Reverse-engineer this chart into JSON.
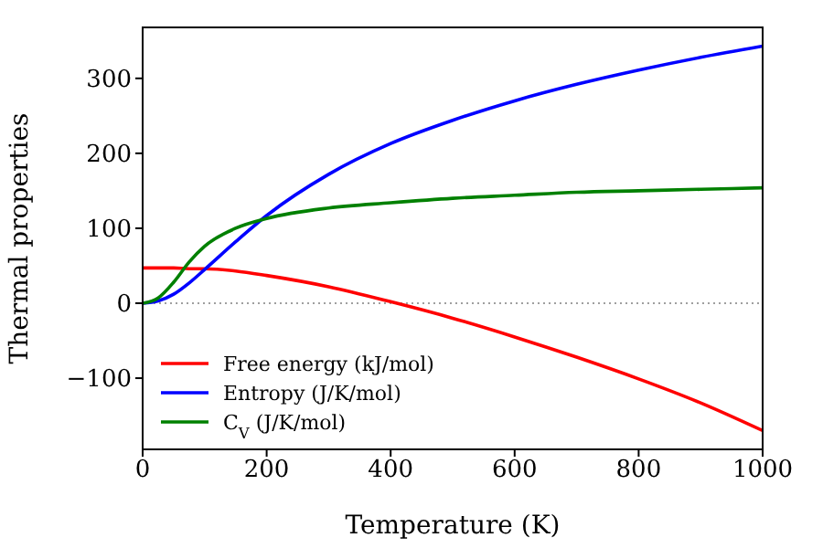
{
  "chart_data": {
    "type": "line",
    "xlabel": "Temperature (K)",
    "ylabel": "Thermal properties",
    "x": [
      0,
      25,
      50,
      75,
      100,
      150,
      200,
      300,
      400,
      500,
      600,
      700,
      800,
      900,
      1000
    ],
    "series": [
      {
        "name": "Free energy (kJ/mol)",
        "color": "#ff0000",
        "values": [
          47,
          47,
          47,
          46,
          46,
          43,
          37,
          22,
          2,
          -20,
          -45,
          -72,
          -101,
          -133,
          -170
        ]
      },
      {
        "name": "Entropy (J/K/mol)",
        "color": "#0000ff",
        "values": [
          0,
          3,
          12,
          27,
          45,
          82,
          117,
          172,
          213,
          244,
          270,
          292,
          311,
          328,
          343
        ]
      },
      {
        "name": "C$_{V}$ (J/K/mol)",
        "color": "#008000",
        "values": [
          0,
          7,
          28,
          55,
          76,
          100,
          113,
          127,
          134,
          140,
          144,
          148,
          150,
          152,
          154
        ]
      }
    ],
    "xlim": [
      0,
      1000
    ],
    "xticks": [
      0,
      200,
      400,
      600,
      800,
      1000
    ],
    "ylim": [
      -195,
      368
    ],
    "yticks": [
      {
        "value": -100,
        "label": "−100"
      },
      0,
      100,
      200,
      300
    ],
    "ref_lines": [
      {
        "axis": "y",
        "value": 0,
        "color": "#808080",
        "line_style": "dotted"
      }
    ],
    "legend": "bottom left",
    "grid": false,
    "marker": "none",
    "line_style": "solid"
  }
}
